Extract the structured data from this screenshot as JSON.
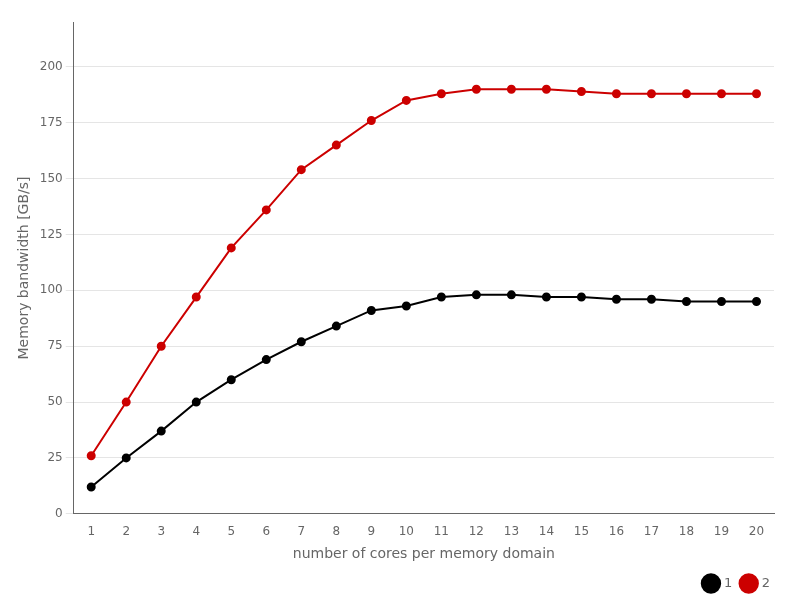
{
  "chart_data": {
    "type": "line",
    "xlabel": "number of cores per memory domain",
    "ylabel": "Memory bandwidth [GB/s]",
    "x": [
      1,
      2,
      3,
      4,
      5,
      6,
      7,
      8,
      9,
      10,
      11,
      12,
      13,
      14,
      15,
      16,
      17,
      18,
      19,
      20
    ],
    "series": [
      {
        "name": "1",
        "color": "#000000",
        "marker": "circle",
        "values": [
          12,
          25,
          37,
          50,
          60,
          69,
          77,
          84,
          91,
          93,
          97,
          98,
          98,
          97,
          97,
          96,
          96,
          95,
          95,
          95
        ]
      },
      {
        "name": "2",
        "color": "#cc0000",
        "marker": "circle",
        "values": [
          26,
          50,
          75,
          97,
          119,
          136,
          154,
          165,
          176,
          185,
          188,
          190,
          190,
          190,
          189,
          188,
          188,
          188,
          188,
          188
        ]
      }
    ],
    "xlim": [
      0.5,
      20.5
    ],
    "xticks": [
      1,
      2,
      3,
      4,
      5,
      6,
      7,
      8,
      9,
      10,
      11,
      12,
      13,
      14,
      15,
      16,
      17,
      18,
      19,
      20
    ],
    "ylim": [
      0,
      220
    ],
    "yticks": [
      0,
      25,
      50,
      75,
      100,
      125,
      150,
      175,
      200
    ],
    "grid": "y",
    "legend": "lower right"
  }
}
